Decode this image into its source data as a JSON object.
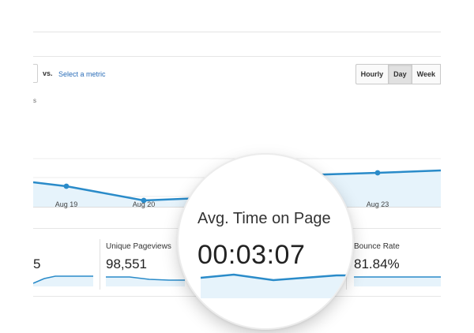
{
  "controls": {
    "vs_label": "vs.",
    "select_metric_link": "Select a metric",
    "range_buttons": [
      {
        "label": "Hourly",
        "active": false
      },
      {
        "label": "Day",
        "active": true
      },
      {
        "label": "Week",
        "active": false
      }
    ],
    "metric_tick_fragment": "s"
  },
  "chart": {
    "x_ticks": [
      "Aug 19",
      "Aug 20",
      "Aug 23"
    ]
  },
  "scorecards": [
    {
      "label": "",
      "value": "5"
    },
    {
      "label": "Unique Pageviews",
      "value": "98,551"
    },
    {
      "label": "Avg. Time on Page",
      "value": "00:03:07"
    },
    {
      "label": "Bounce Rate",
      "value": "81.84%"
    }
  ],
  "colors": {
    "line": "#2a8bc9",
    "area": "#e6f3fb",
    "link": "#2a6db8"
  }
}
